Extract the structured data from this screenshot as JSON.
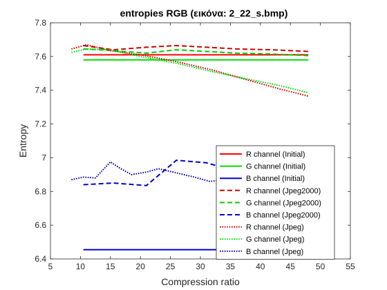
{
  "chart_data": {
    "type": "line",
    "title": "entropies RGB (εικόνα: 2_22_s.bmp)",
    "xlabel": "Compression ratio",
    "ylabel": "Entropy",
    "xlim": [
      5,
      55
    ],
    "ylim": [
      6.4,
      7.8
    ],
    "xticks": [
      5,
      10,
      15,
      20,
      25,
      30,
      35,
      40,
      45,
      50,
      55
    ],
    "yticks": [
      6.4,
      6.6,
      6.8,
      7,
      7.2,
      7.4,
      7.6,
      7.8
    ],
    "ytick_labels": [
      "6.4",
      "6.6",
      "6.8",
      "7",
      "7.2",
      "7.4",
      "7.6",
      "7.8"
    ],
    "grid": false,
    "legend_position": "bottom-right",
    "series": [
      {
        "name": "R channel (Initial)",
        "color": "#ff0000",
        "style": "solid",
        "x": [
          10.5,
          48
        ],
        "y": [
          7.61,
          7.61
        ]
      },
      {
        "name": "G channel (Initial)",
        "color": "#00dd00",
        "style": "solid",
        "x": [
          10.5,
          48
        ],
        "y": [
          7.58,
          7.58
        ]
      },
      {
        "name": "B channel (Initial)",
        "color": "#0000cc",
        "style": "solid",
        "x": [
          10.5,
          48
        ],
        "y": [
          6.455,
          6.455
        ]
      },
      {
        "name": "R channel (Jpeg2000)",
        "color": "#cc0000",
        "style": "dashed",
        "x": [
          10.5,
          15.5,
          21,
          26,
          31,
          36,
          42,
          48
        ],
        "y": [
          7.665,
          7.64,
          7.655,
          7.665,
          7.655,
          7.645,
          7.64,
          7.63
        ]
      },
      {
        "name": "G channel (Jpeg2000)",
        "color": "#00cc00",
        "style": "dashed",
        "x": [
          10.5,
          15.5,
          21,
          26,
          31,
          36,
          42,
          48
        ],
        "y": [
          7.645,
          7.635,
          7.62,
          7.64,
          7.63,
          7.62,
          7.615,
          7.605
        ]
      },
      {
        "name": "B channel (Jpeg2000)",
        "color": "#0000cc",
        "style": "dashed",
        "x": [
          10.5,
          15.5,
          21,
          26,
          31,
          36
        ],
        "y": [
          6.84,
          6.85,
          6.835,
          6.985,
          6.97,
          6.92
        ]
      },
      {
        "name": "R channel (Jpeg)",
        "color": "#cc0000",
        "style": "dotted",
        "x": [
          8.5,
          11,
          15,
          20,
          26,
          32,
          38,
          43,
          48
        ],
        "y": [
          7.645,
          7.67,
          7.635,
          7.61,
          7.57,
          7.52,
          7.46,
          7.41,
          7.365
        ]
      },
      {
        "name": "G channel (Jpeg)",
        "color": "#00dd00",
        "style": "dotted",
        "x": [
          8.5,
          11,
          15,
          20,
          26,
          32,
          38,
          43,
          48
        ],
        "y": [
          7.625,
          7.645,
          7.64,
          7.6,
          7.56,
          7.51,
          7.465,
          7.43,
          7.385
        ]
      },
      {
        "name": "B channel (Jpeg)",
        "color": "#0000aa",
        "style": "dotted",
        "x": [
          8.5,
          10.5,
          12.5,
          15,
          16.5,
          18.5,
          21,
          23,
          26,
          29,
          31.5,
          34
        ],
        "y": [
          6.87,
          6.885,
          6.88,
          6.975,
          6.94,
          6.9,
          6.915,
          6.935,
          6.91,
          6.885,
          6.86,
          6.865
        ]
      }
    ]
  }
}
